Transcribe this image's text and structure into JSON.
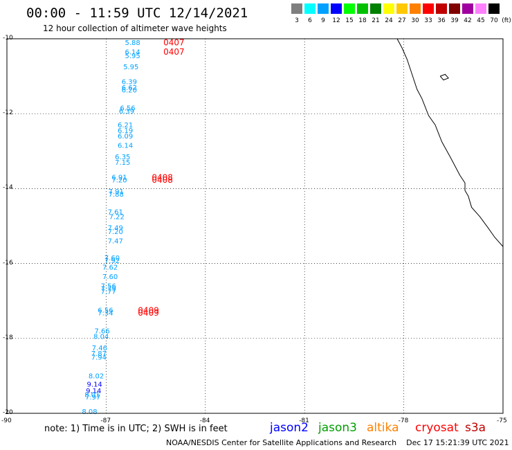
{
  "title": "00:00 - 11:59 UTC 12/14/2021",
  "subtitle": "12 hour collection of altimeter wave heights",
  "legend": {
    "unit": "(ft)",
    "items": [
      {
        "label": "3",
        "color": "#7f7f7f"
      },
      {
        "label": "6",
        "color": "#00ffff"
      },
      {
        "label": "9",
        "color": "#00a0ff"
      },
      {
        "label": "12",
        "color": "#0000ff"
      },
      {
        "label": "15",
        "color": "#00ff00"
      },
      {
        "label": "18",
        "color": "#00c000"
      },
      {
        "label": "21",
        "color": "#008000"
      },
      {
        "label": "24",
        "color": "#ffff00"
      },
      {
        "label": "27",
        "color": "#ffc800"
      },
      {
        "label": "30",
        "color": "#ff8000"
      },
      {
        "label": "33",
        "color": "#ff0000"
      },
      {
        "label": "36",
        "color": "#c00000"
      },
      {
        "label": "39",
        "color": "#800000"
      },
      {
        "label": "42",
        "color": "#a000a0"
      },
      {
        "label": "45",
        "color": "#ff80ff"
      },
      {
        "label": "70",
        "color": "#000000"
      }
    ]
  },
  "map_data": {
    "lon_range": [
      -90,
      -75
    ],
    "lat_range": [
      -20,
      -10
    ],
    "lat_labels": [
      "-10",
      "-12",
      "-14",
      "-16",
      "-18",
      "-20"
    ],
    "lon_labels": [
      "-90",
      "-87",
      "-84",
      "-81",
      "-78",
      "-75"
    ],
    "colors": {
      "cyan": "#00a0ff",
      "blue": "#0000ff",
      "red": "#ff0000"
    },
    "heights": [
      {
        "v": "5.88",
        "lon": -86.2,
        "lat": -10.1,
        "c": "cyan"
      },
      {
        "v": "6.14",
        "lon": -86.2,
        "lat": -10.35,
        "c": "cyan"
      },
      {
        "v": "5.95",
        "lon": -86.2,
        "lat": -10.45,
        "c": "cyan"
      },
      {
        "v": "5.95",
        "lon": -86.25,
        "lat": -10.75,
        "c": "cyan"
      },
      {
        "v": "6.39",
        "lon": -86.3,
        "lat": -11.15,
        "c": "cyan"
      },
      {
        "v": "6.62",
        "lon": -86.3,
        "lat": -11.3,
        "c": "cyan"
      },
      {
        "v": "6.20",
        "lon": -86.3,
        "lat": -11.37,
        "c": "cyan"
      },
      {
        "v": "6.56",
        "lon": -86.35,
        "lat": -11.85,
        "c": "cyan"
      },
      {
        "v": "6.39",
        "lon": -86.38,
        "lat": -11.93,
        "c": "cyan"
      },
      {
        "v": "6.21",
        "lon": -86.42,
        "lat": -12.3,
        "c": "cyan"
      },
      {
        "v": "6.19",
        "lon": -86.42,
        "lat": -12.45,
        "c": "cyan"
      },
      {
        "v": "6.09",
        "lon": -86.42,
        "lat": -12.6,
        "c": "cyan"
      },
      {
        "v": "6.14",
        "lon": -86.42,
        "lat": -12.85,
        "c": "cyan"
      },
      {
        "v": "6.35",
        "lon": -86.5,
        "lat": -13.15,
        "c": "cyan"
      },
      {
        "v": "7.15",
        "lon": -86.5,
        "lat": -13.3,
        "c": "cyan"
      },
      {
        "v": "6.91",
        "lon": -86.6,
        "lat": -13.7,
        "c": "cyan"
      },
      {
        "v": "7.20",
        "lon": -86.6,
        "lat": -13.77,
        "c": "cyan"
      },
      {
        "v": "7.91",
        "lon": -86.7,
        "lat": -14.08,
        "c": "cyan"
      },
      {
        "v": "7.88",
        "lon": -86.7,
        "lat": -14.15,
        "c": "cyan"
      },
      {
        "v": "7.61",
        "lon": -86.72,
        "lat": -14.62,
        "c": "cyan"
      },
      {
        "v": "7.22",
        "lon": -86.68,
        "lat": -14.75,
        "c": "cyan"
      },
      {
        "v": "7.49",
        "lon": -86.72,
        "lat": -15.05,
        "c": "cyan"
      },
      {
        "v": "7.20",
        "lon": -86.72,
        "lat": -15.15,
        "c": "cyan"
      },
      {
        "v": "7.47",
        "lon": -86.72,
        "lat": -15.4,
        "c": "cyan"
      },
      {
        "v": "7.60",
        "lon": -86.82,
        "lat": -15.85,
        "c": "cyan"
      },
      {
        "v": "7.92",
        "lon": -86.82,
        "lat": -15.92,
        "c": "cyan"
      },
      {
        "v": "7.62",
        "lon": -86.88,
        "lat": -16.1,
        "c": "cyan"
      },
      {
        "v": "7.60",
        "lon": -86.88,
        "lat": -16.35,
        "c": "cyan"
      },
      {
        "v": "7.56",
        "lon": -86.93,
        "lat": -16.6,
        "c": "cyan"
      },
      {
        "v": "7.79",
        "lon": -86.93,
        "lat": -16.67,
        "c": "cyan"
      },
      {
        "v": "7.77",
        "lon": -86.93,
        "lat": -16.75,
        "c": "cyan"
      },
      {
        "v": "6.56",
        "lon": -87.02,
        "lat": -17.25,
        "c": "cyan"
      },
      {
        "v": "7.34",
        "lon": -87.02,
        "lat": -17.32,
        "c": "cyan"
      },
      {
        "v": "7.66",
        "lon": -87.12,
        "lat": -17.8,
        "c": "cyan"
      },
      {
        "v": "8.04",
        "lon": -87.15,
        "lat": -17.95,
        "c": "cyan"
      },
      {
        "v": "7.46",
        "lon": -87.2,
        "lat": -18.25,
        "c": "cyan"
      },
      {
        "v": "7.87",
        "lon": -87.22,
        "lat": -18.4,
        "c": "cyan"
      },
      {
        "v": "7.94",
        "lon": -87.22,
        "lat": -18.5,
        "c": "cyan"
      },
      {
        "v": "8.02",
        "lon": -87.3,
        "lat": -19.0,
        "c": "cyan"
      },
      {
        "v": "9.14",
        "lon": -87.35,
        "lat": -19.22,
        "c": "blue"
      },
      {
        "v": "9.14",
        "lon": -87.38,
        "lat": -19.4,
        "c": "blue"
      },
      {
        "v": "8.01",
        "lon": -87.42,
        "lat": -19.5,
        "c": "cyan"
      },
      {
        "v": "7.97",
        "lon": -87.4,
        "lat": -19.57,
        "c": "cyan"
      },
      {
        "v": "8.08",
        "lon": -87.5,
        "lat": -19.95,
        "c": "cyan"
      }
    ],
    "times": [
      {
        "v": "0407",
        "lon": -84.95,
        "lat": -10.1,
        "c": "red"
      },
      {
        "v": "0407",
        "lon": -84.95,
        "lat": -10.35,
        "c": "red"
      },
      {
        "v": "0408",
        "lon": -85.3,
        "lat": -13.7,
        "c": "red"
      },
      {
        "v": "0408",
        "lon": -85.3,
        "lat": -13.77,
        "c": "red"
      },
      {
        "v": "0409",
        "lon": -85.72,
        "lat": -17.25,
        "c": "red"
      },
      {
        "v": "0409",
        "lon": -85.72,
        "lat": -17.32,
        "c": "red"
      }
    ],
    "coastline": [
      [
        -78.2,
        -10.0
      ],
      [
        -78.05,
        -10.25
      ],
      [
        -77.9,
        -10.55
      ],
      [
        -77.75,
        -10.95
      ],
      [
        -77.6,
        -11.35
      ],
      [
        -77.45,
        -11.6
      ],
      [
        -77.25,
        -12.05
      ],
      [
        -77.05,
        -12.3
      ],
      [
        -76.85,
        -12.75
      ],
      [
        -76.6,
        -13.15
      ],
      [
        -76.3,
        -13.65
      ],
      [
        -76.15,
        -13.85
      ],
      [
        -76.15,
        -14.05
      ],
      [
        -76.05,
        -14.2
      ],
      [
        -75.95,
        -14.5
      ],
      [
        -75.7,
        -14.75
      ],
      [
        -75.45,
        -15.05
      ],
      [
        -75.25,
        -15.3
      ],
      [
        -75.1,
        -15.45
      ],
      [
        -75.0,
        -15.55
      ]
    ],
    "island": [
      [
        -76.9,
        -11.0
      ],
      [
        -76.75,
        -10.95
      ],
      [
        -76.65,
        -11.05
      ],
      [
        -76.8,
        -11.1
      ],
      [
        -76.9,
        -11.0
      ]
    ]
  },
  "note": "note: 1) Time is in UTC; 2) SWH is in feet",
  "satellites": [
    {
      "name": "jason2",
      "color": "#0000ff"
    },
    {
      "name": "jason3",
      "color": "#00a000"
    },
    {
      "name": "altika",
      "color": "#ff8000"
    },
    {
      "name": "cryosat",
      "color": "#ff0000"
    },
    {
      "name": "s3a",
      "color": "#c00000"
    }
  ],
  "credit": "NOAA/NESDIS Center for Satellite Applications and Research    Dec 17 15:21:39 UTC 2021"
}
